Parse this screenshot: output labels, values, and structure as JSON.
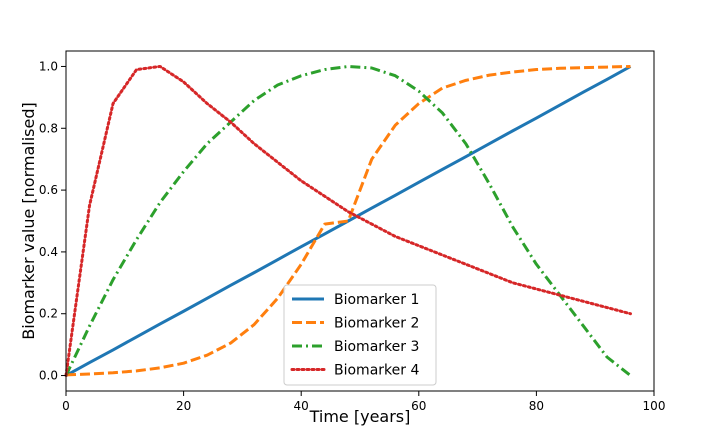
{
  "chart_data": {
    "type": "line",
    "xlabel": "Time [years]",
    "ylabel": "Biomarker value [normalised]",
    "xlim": [
      0,
      100
    ],
    "ylim": [
      -0.05,
      1.05
    ],
    "x_ticks": [
      0,
      20,
      40,
      60,
      80,
      100
    ],
    "x_tick_labels": [
      "0",
      "20",
      "40",
      "60",
      "80",
      "100"
    ],
    "y_ticks": [
      0.0,
      0.2,
      0.4,
      0.6,
      0.8,
      1.0
    ],
    "y_tick_labels": [
      "0.0",
      "0.2",
      "0.4",
      "0.6",
      "0.8",
      "1.0"
    ],
    "grid": false,
    "legend_position": "bottom-center",
    "x": [
      0,
      4,
      8,
      12,
      16,
      20,
      24,
      28,
      32,
      36,
      40,
      44,
      48,
      52,
      56,
      60,
      64,
      68,
      72,
      76,
      80,
      84,
      88,
      92,
      96
    ],
    "series": [
      {
        "name": "Biomarker 1",
        "color": "#1f77b4",
        "style": "solid",
        "values": [
          0.0,
          0.042,
          0.083,
          0.125,
          0.167,
          0.208,
          0.25,
          0.292,
          0.333,
          0.375,
          0.417,
          0.458,
          0.5,
          0.542,
          0.583,
          0.625,
          0.667,
          0.708,
          0.75,
          0.792,
          0.833,
          0.875,
          0.917,
          0.958,
          1.0
        ]
      },
      {
        "name": "Biomarker 2",
        "color": "#ff7f0e",
        "style": "dashed",
        "values": [
          0.002,
          0.005,
          0.009,
          0.015,
          0.025,
          0.04,
          0.066,
          0.105,
          0.165,
          0.25,
          0.36,
          0.49,
          0.5,
          0.7,
          0.81,
          0.88,
          0.93,
          0.955,
          0.972,
          0.982,
          0.99,
          0.994,
          0.996,
          0.998,
          1.0
        ]
      },
      {
        "name": "Biomarker 3",
        "color": "#2ca02c",
        "style": "dashdot",
        "values": [
          0.0,
          0.16,
          0.31,
          0.44,
          0.56,
          0.66,
          0.75,
          0.82,
          0.89,
          0.94,
          0.97,
          0.99,
          1.0,
          0.995,
          0.97,
          0.92,
          0.85,
          0.75,
          0.62,
          0.48,
          0.36,
          0.26,
          0.16,
          0.06,
          0.0
        ]
      },
      {
        "name": "Biomarker 4",
        "color": "#d62728",
        "style": "dotted",
        "values": [
          0.0,
          0.55,
          0.88,
          0.99,
          1.0,
          0.95,
          0.88,
          0.82,
          0.75,
          0.69,
          0.63,
          0.58,
          0.53,
          0.49,
          0.45,
          0.42,
          0.39,
          0.36,
          0.33,
          0.3,
          0.28,
          0.26,
          0.24,
          0.22,
          0.2
        ]
      }
    ]
  }
}
